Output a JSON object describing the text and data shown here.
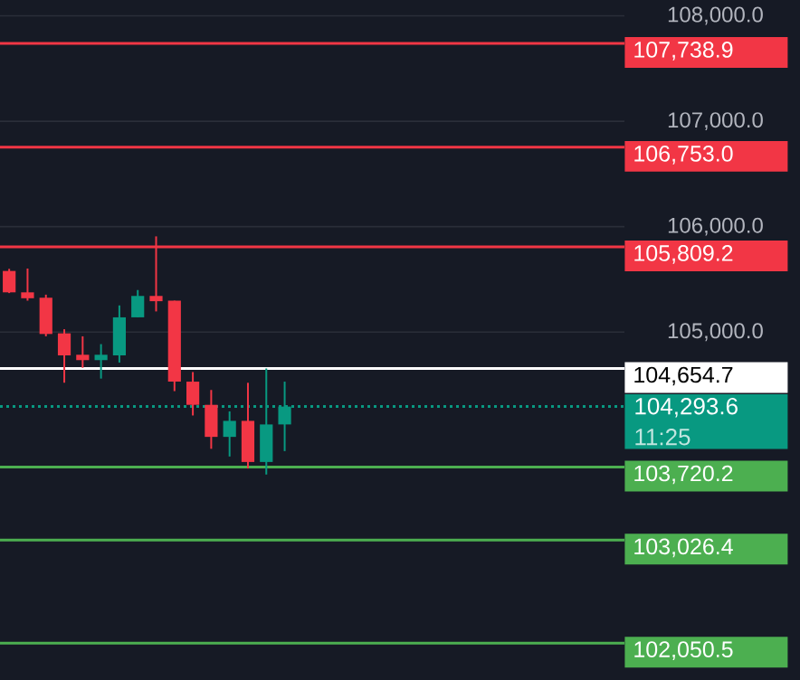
{
  "chart_data": {
    "type": "candlestick",
    "categories": [
      null,
      null,
      null,
      null,
      null,
      null,
      null,
      null,
      null,
      null,
      null,
      null,
      null,
      null,
      null,
      null,
      null,
      null,
      null,
      null,
      null,
      null,
      null,
      null,
      null,
      null,
      null,
      null,
      null,
      null,
      null,
      null,
      null,
      null
    ],
    "ohlc": [
      [
        105580,
        105600,
        105370,
        105377
      ],
      [
        105377,
        105603,
        105298,
        105321
      ],
      [
        105326,
        105355,
        104960,
        104982
      ],
      [
        104988,
        105027,
        104520,
        104779
      ],
      [
        104785,
        104960,
        104661,
        104734
      ],
      [
        104734,
        104886,
        104559,
        104785
      ],
      [
        104779,
        105253,
        104711,
        105140
      ],
      [
        105140,
        105399,
        105140,
        105343
      ],
      [
        105343,
        105908,
        105196,
        105293
      ],
      [
        105298,
        105298,
        104440,
        104530
      ],
      [
        104530,
        104621,
        104209,
        104310
      ],
      [
        104310,
        104451,
        103893,
        104006
      ],
      [
        104006,
        104248,
        103820,
        104158
      ],
      [
        104158,
        104519,
        103706,
        103768
      ],
      [
        103768,
        104655,
        103649,
        104124
      ],
      [
        104124,
        104530,
        103871,
        104293.6
      ],
      null,
      null,
      null,
      null,
      null,
      null,
      null,
      null,
      null,
      null,
      null,
      null,
      null,
      null,
      null,
      null,
      null,
      null
    ],
    "ylim": [
      101700,
      108150
    ],
    "yticks": [
      {
        "value": 105000,
        "label": "105,000.0"
      },
      {
        "value": 106000,
        "label": "106,000.0"
      },
      {
        "value": 107000,
        "label": "107,000.0"
      },
      {
        "value": 108000,
        "label": "108,000.0"
      }
    ],
    "grid": "y",
    "ref_lines": [
      {
        "axis": "y",
        "value": 107738.9,
        "label": "107,738.9",
        "color": "#f23645"
      },
      {
        "axis": "y",
        "value": 106753.0,
        "label": "106,753.0",
        "color": "#f23645"
      },
      {
        "axis": "y",
        "value": 105809.2,
        "label": "105,809.2",
        "color": "#f23645"
      },
      {
        "axis": "y",
        "value": 104654.7,
        "label": "104,654.7",
        "color": "#ffffff"
      },
      {
        "axis": "y",
        "value": 104293.6,
        "label": "104,293.6",
        "color": "#089981",
        "line_style": "dotted"
      },
      {
        "axis": "y",
        "value": 103720.2,
        "label": "103,720.2",
        "color": "#4caf50"
      },
      {
        "axis": "y",
        "value": 103026.4,
        "label": "103,026.4",
        "color": "#4caf50"
      },
      {
        "axis": "y",
        "value": 102050.5,
        "label": "102,050.5",
        "color": "#4caf50"
      }
    ],
    "annotations": [
      "11:25"
    ]
  }
}
